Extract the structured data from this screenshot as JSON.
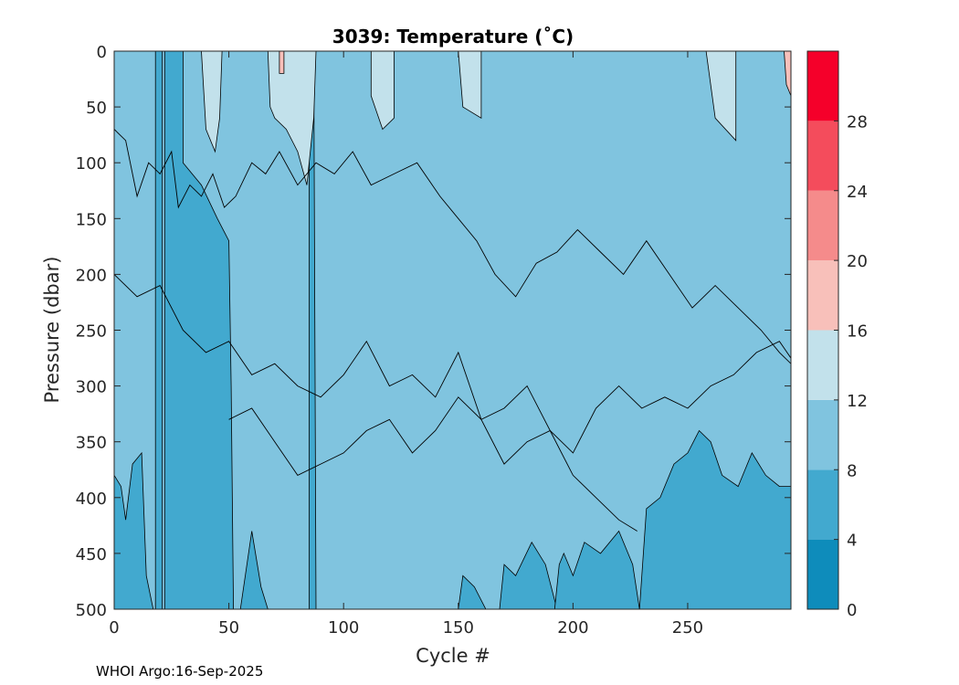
{
  "chart_data": {
    "type": "heatmap",
    "title": "3039:  Temperature (˚C)",
    "xlabel": "Cycle #",
    "ylabel": "Pressure (dbar)",
    "xlim": [
      0,
      295
    ],
    "ylim": [
      0,
      500
    ],
    "y_reversed": true,
    "xticks": [
      0,
      50,
      100,
      150,
      200,
      250
    ],
    "yticks": [
      0,
      50,
      100,
      150,
      200,
      250,
      300,
      350,
      400,
      450,
      500
    ],
    "colorbar": {
      "range": [
        0,
        32
      ],
      "ticks": [
        0,
        4,
        8,
        12,
        16,
        20,
        24,
        28
      ],
      "bands": [
        {
          "from": 0,
          "to": 4,
          "color": "#0e8cbb"
        },
        {
          "from": 4,
          "to": 8,
          "color": "#42a9cf"
        },
        {
          "from": 8,
          "to": 12,
          "color": "#80c4df"
        },
        {
          "from": 12,
          "to": 16,
          "color": "#c2e1eb"
        },
        {
          "from": 16,
          "to": 20,
          "color": "#f8c0ba"
        },
        {
          "from": 20,
          "to": 24,
          "color": "#f58b8b"
        },
        {
          "from": 24,
          "to": 28,
          "color": "#f44c5c"
        },
        {
          "from": 28,
          "to": 32,
          "color": "#f5002a"
        }
      ]
    },
    "regions": [
      {
        "label": "4-8",
        "color": "#42a9cf",
        "polygon": [
          [
            0,
            500
          ],
          [
            0,
            380
          ],
          [
            3,
            390
          ],
          [
            5,
            420
          ],
          [
            8,
            370
          ],
          [
            12,
            360
          ],
          [
            14,
            470
          ],
          [
            17,
            500
          ]
        ]
      },
      {
        "label": "4-8",
        "color": "#42a9cf",
        "polygon": [
          [
            18,
            0
          ],
          [
            21,
            0
          ],
          [
            21,
            500
          ],
          [
            18,
            500
          ]
        ]
      },
      {
        "label": "4-8",
        "color": "#42a9cf",
        "polygon": [
          [
            22,
            0
          ],
          [
            30,
            0
          ],
          [
            30,
            100
          ],
          [
            38,
            120
          ],
          [
            45,
            150
          ],
          [
            50,
            170
          ],
          [
            51,
            300
          ],
          [
            52,
            500
          ],
          [
            22,
            500
          ]
        ]
      },
      {
        "label": "4-8",
        "color": "#42a9cf",
        "polygon": [
          [
            55,
            500
          ],
          [
            60,
            430
          ],
          [
            64,
            480
          ],
          [
            67,
            500
          ]
        ]
      },
      {
        "label": "4-8",
        "color": "#42a9cf",
        "polygon": [
          [
            85,
            0
          ],
          [
            87,
            0
          ],
          [
            88,
            500
          ],
          [
            85,
            500
          ]
        ]
      },
      {
        "label": "4-8",
        "color": "#42a9cf",
        "polygon": [
          [
            150,
            500
          ],
          [
            152,
            470
          ],
          [
            157,
            480
          ],
          [
            162,
            500
          ]
        ]
      },
      {
        "label": "4-8",
        "color": "#42a9cf",
        "polygon": [
          [
            168,
            500
          ],
          [
            170,
            460
          ],
          [
            175,
            470
          ],
          [
            182,
            440
          ],
          [
            188,
            460
          ],
          [
            193,
            500
          ]
        ]
      },
      {
        "label": "4-8",
        "color": "#42a9cf",
        "polygon": [
          [
            192,
            500
          ],
          [
            194,
            460
          ],
          [
            196,
            450
          ],
          [
            200,
            470
          ],
          [
            205,
            440
          ],
          [
            212,
            450
          ],
          [
            220,
            430
          ],
          [
            226,
            460
          ],
          [
            229,
            500
          ]
        ]
      },
      {
        "label": "4-8",
        "color": "#42a9cf",
        "polygon": [
          [
            229,
            500
          ],
          [
            232,
            410
          ],
          [
            238,
            400
          ],
          [
            244,
            370
          ],
          [
            250,
            360
          ],
          [
            255,
            340
          ],
          [
            260,
            350
          ],
          [
            265,
            380
          ],
          [
            272,
            390
          ],
          [
            278,
            360
          ],
          [
            284,
            380
          ],
          [
            290,
            390
          ],
          [
            295,
            390
          ],
          [
            295,
            500
          ]
        ]
      },
      {
        "label": "12-16",
        "color": "#c2e1eb",
        "polygon": [
          [
            38,
            0
          ],
          [
            47,
            0
          ],
          [
            46,
            60
          ],
          [
            44,
            90
          ],
          [
            40,
            70
          ]
        ]
      },
      {
        "label": "12-16",
        "color": "#c2e1eb",
        "polygon": [
          [
            67,
            0
          ],
          [
            88,
            0
          ],
          [
            87,
            60
          ],
          [
            84,
            120
          ],
          [
            80,
            90
          ],
          [
            75,
            70
          ],
          [
            70,
            60
          ],
          [
            68,
            50
          ]
        ]
      },
      {
        "label": "12-16",
        "color": "#c2e1eb",
        "polygon": [
          [
            112,
            0
          ],
          [
            122,
            0
          ],
          [
            122,
            60
          ],
          [
            117,
            70
          ],
          [
            112,
            40
          ]
        ]
      },
      {
        "label": "12-16",
        "color": "#c2e1eb",
        "polygon": [
          [
            150,
            0
          ],
          [
            160,
            0
          ],
          [
            160,
            60
          ],
          [
            152,
            50
          ]
        ]
      },
      {
        "label": "12-16",
        "color": "#c2e1eb",
        "polygon": [
          [
            258,
            0
          ],
          [
            271,
            0
          ],
          [
            271,
            80
          ],
          [
            262,
            60
          ]
        ]
      },
      {
        "label": "16-20",
        "color": "#f8c0ba",
        "polygon": [
          [
            72,
            0
          ],
          [
            74,
            0
          ],
          [
            74,
            20
          ],
          [
            72,
            20
          ]
        ]
      },
      {
        "label": "16-20",
        "color": "#f8c0ba",
        "polygon": [
          [
            292,
            0
          ],
          [
            295,
            0
          ],
          [
            295,
            40
          ],
          [
            293,
            30
          ]
        ]
      }
    ],
    "contours": [
      {
        "level": 12,
        "points": [
          [
            0,
            70
          ],
          [
            5,
            80
          ],
          [
            10,
            130
          ],
          [
            15,
            100
          ],
          [
            20,
            110
          ],
          [
            25,
            90
          ],
          [
            28,
            140
          ],
          [
            33,
            120
          ],
          [
            38,
            130
          ],
          [
            43,
            110
          ],
          [
            48,
            140
          ],
          [
            53,
            130
          ],
          [
            60,
            100
          ],
          [
            66,
            110
          ],
          [
            72,
            90
          ],
          [
            80,
            120
          ],
          [
            88,
            100
          ],
          [
            96,
            110
          ],
          [
            104,
            90
          ],
          [
            112,
            120
          ],
          [
            122,
            110
          ],
          [
            132,
            100
          ],
          [
            142,
            130
          ],
          [
            150,
            150
          ],
          [
            158,
            170
          ],
          [
            166,
            200
          ],
          [
            175,
            220
          ],
          [
            184,
            190
          ],
          [
            193,
            180
          ],
          [
            202,
            160
          ],
          [
            212,
            180
          ],
          [
            222,
            200
          ],
          [
            232,
            170
          ],
          [
            242,
            200
          ],
          [
            252,
            230
          ],
          [
            262,
            210
          ],
          [
            272,
            230
          ],
          [
            282,
            250
          ],
          [
            290,
            270
          ],
          [
            295,
            280
          ]
        ]
      },
      {
        "level": 8,
        "points": [
          [
            0,
            200
          ],
          [
            10,
            220
          ],
          [
            20,
            210
          ],
          [
            30,
            250
          ],
          [
            40,
            270
          ],
          [
            50,
            260
          ],
          [
            60,
            290
          ],
          [
            70,
            280
          ],
          [
            80,
            300
          ],
          [
            90,
            310
          ],
          [
            100,
            290
          ],
          [
            110,
            260
          ],
          [
            120,
            300
          ],
          [
            130,
            290
          ],
          [
            140,
            310
          ],
          [
            150,
            270
          ],
          [
            160,
            330
          ],
          [
            170,
            320
          ],
          [
            180,
            300
          ],
          [
            190,
            340
          ],
          [
            200,
            360
          ],
          [
            210,
            320
          ],
          [
            220,
            300
          ],
          [
            230,
            320
          ],
          [
            240,
            310
          ],
          [
            250,
            320
          ],
          [
            260,
            300
          ],
          [
            270,
            290
          ],
          [
            280,
            270
          ],
          [
            290,
            260
          ],
          [
            295,
            275
          ]
        ]
      },
      {
        "level": 8,
        "points": [
          [
            50,
            330
          ],
          [
            60,
            320
          ],
          [
            70,
            350
          ],
          [
            80,
            380
          ],
          [
            90,
            370
          ],
          [
            100,
            360
          ],
          [
            110,
            340
          ],
          [
            120,
            330
          ],
          [
            130,
            360
          ],
          [
            140,
            340
          ],
          [
            150,
            310
          ],
          [
            160,
            330
          ],
          [
            170,
            370
          ],
          [
            180,
            350
          ],
          [
            190,
            340
          ],
          [
            200,
            380
          ],
          [
            210,
            400
          ],
          [
            220,
            420
          ],
          [
            228,
            430
          ]
        ]
      }
    ]
  },
  "footer": "WHOI Argo:16-Sep-2025"
}
